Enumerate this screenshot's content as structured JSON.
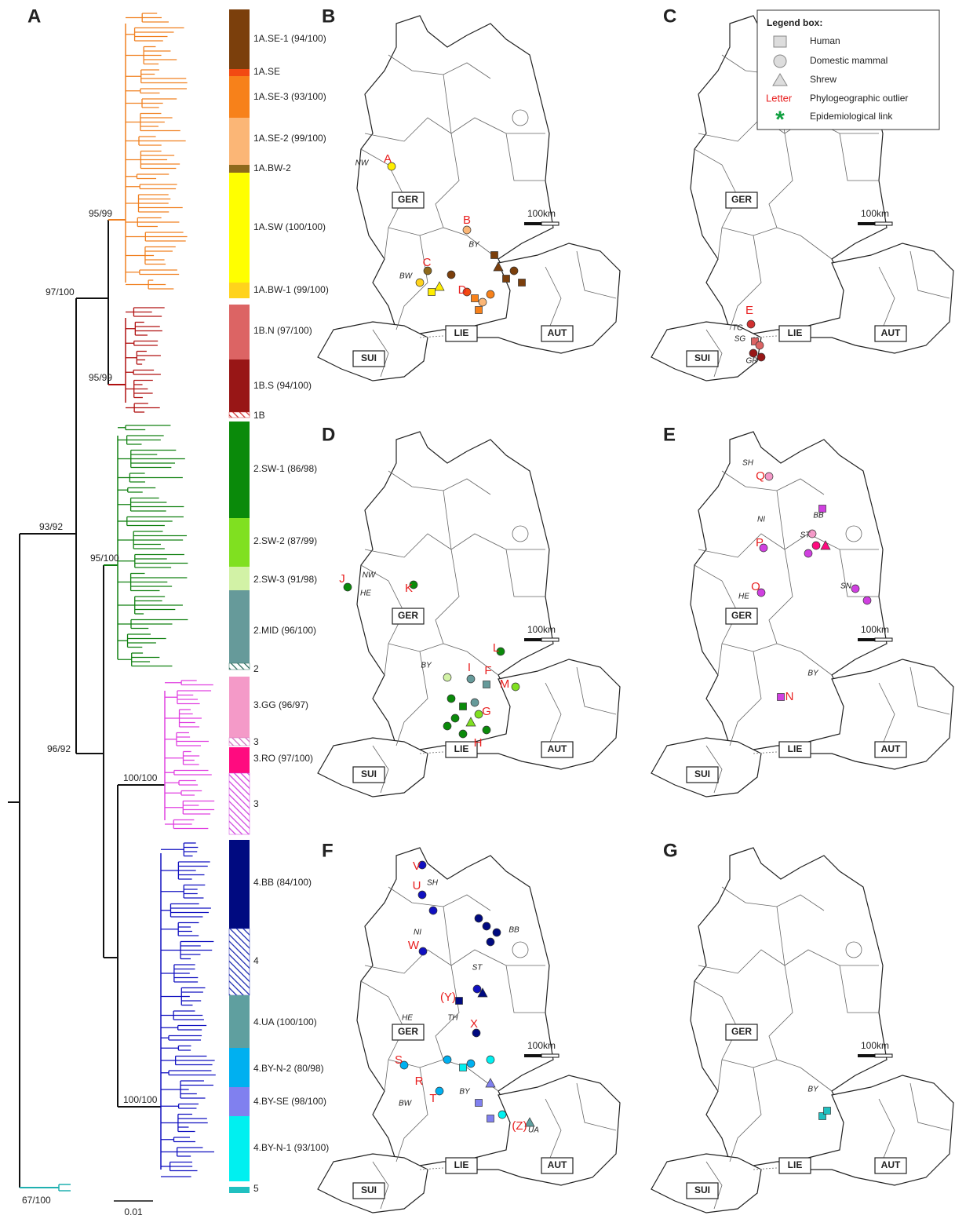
{
  "panel_labels": [
    "A",
    "B",
    "C",
    "D",
    "E",
    "F",
    "G"
  ],
  "tree": {
    "supports": [
      "95/99",
      "97/100",
      "95/99",
      "93/92",
      "95/100",
      "96/92",
      "100/100",
      "100/100",
      "67/100"
    ],
    "scale": "0.01",
    "clades": [
      {
        "label": "1A.SE-1 (94/100)",
        "color": "#7b3f0c",
        "hatched": false
      },
      {
        "label": "1A.SE",
        "color": "#f24a12",
        "hatched": false
      },
      {
        "label": "1A.SE-3 (93/100)",
        "color": "#f7811a",
        "hatched": false
      },
      {
        "label": "1A.SE-2 (99/100)",
        "color": "#fbb676",
        "hatched": false
      },
      {
        "label": "1A.BW-2",
        "color": "#8e6a1c",
        "hatched": false
      },
      {
        "label": "1A.SW (100/100)",
        "color": "#ffff00",
        "hatched": false
      },
      {
        "label": "1A.BW-1 (99/100)",
        "color": "#ffd31c",
        "hatched": false
      },
      {
        "label": "1B.N (97/100)",
        "color": "#dc6464",
        "hatched": false
      },
      {
        "label": "1B.S (94/100)",
        "color": "#981616",
        "hatched": false
      },
      {
        "label": "1B",
        "color": "#d03030",
        "hatched": true
      },
      {
        "label": "2.SW-1 (86/98)",
        "color": "#0a8a0a",
        "hatched": false
      },
      {
        "label": "2.SW-2 (87/99)",
        "color": "#80e020",
        "hatched": false
      },
      {
        "label": "2.SW-3 (91/98)",
        "color": "#d2f2a6",
        "hatched": false
      },
      {
        "label": "2.MID (96/100)",
        "color": "#669a9a",
        "hatched": false
      },
      {
        "label": "2",
        "color": "#2a6a5a",
        "hatched": true
      },
      {
        "label": "3.GG (96/97)",
        "color": "#f49ac8",
        "hatched": false
      },
      {
        "label": "3",
        "color": "#d070c0",
        "hatched": true
      },
      {
        "label": "3.RO (97/100)",
        "color": "#ff0b7f",
        "hatched": false
      },
      {
        "label": "3",
        "color": "#d040e0",
        "hatched": true
      },
      {
        "label": "4.BB (84/100)",
        "color": "#000a80",
        "hatched": false
      },
      {
        "label": "4",
        "color": "#1a28b0",
        "hatched": true
      },
      {
        "label": "4.UA (100/100)",
        "color": "#5f9f9f",
        "hatched": false
      },
      {
        "label": "4.BY-N-2 (80/98)",
        "color": "#00b0f0",
        "hatched": false
      },
      {
        "label": "4.BY-SE (98/100)",
        "color": "#8080ef",
        "hatched": false
      },
      {
        "label": "4.BY-N-1 (93/100)",
        "color": "#00f0f0",
        "hatched": false
      },
      {
        "label": "5",
        "color": "#20c0c0",
        "hatched": false
      }
    ]
  },
  "legend": {
    "title": "Legend box:",
    "items": [
      {
        "symbol": "",
        "label": "Human"
      },
      {
        "symbol": "",
        "label": "Domestic mammal"
      },
      {
        "symbol": "",
        "label": "Shrew"
      },
      {
        "symbol": "Letter",
        "label": "Phylogeographic outlier"
      },
      {
        "symbol": "*",
        "label": "Epidemiological link"
      }
    ]
  },
  "maps": [
    {
      "countries": [
        "GER",
        "LIE",
        "SUI",
        "AUT"
      ],
      "scale": "100km",
      "states": [
        "NW",
        "BY",
        "BW"
      ],
      "outliers": [
        "A",
        "B",
        "C",
        "D"
      ]
    },
    {
      "countries": [
        "GER",
        "LIE",
        "SUI",
        "AUT"
      ],
      "scale": "100km",
      "states": [
        "TG",
        "SG",
        "GR"
      ],
      "outliers": [
        "E"
      ]
    },
    {
      "countries": [
        "GER",
        "LIE",
        "SUI",
        "AUT"
      ],
      "scale": "100km",
      "states": [
        "NW",
        "HE",
        "BY"
      ],
      "outliers": [
        "J",
        "K",
        "L",
        "I",
        "F",
        "M",
        "G",
        "H"
      ]
    },
    {
      "countries": [
        "GER",
        "LIE",
        "SUI",
        "AUT"
      ],
      "scale": "100km",
      "states": [
        "SH",
        "NI",
        "BB",
        "ST",
        "HE",
        "SN",
        "BY"
      ],
      "outliers": [
        "Q",
        "P",
        "O",
        "N"
      ]
    },
    {
      "countries": [
        "GER",
        "LIE",
        "SUI",
        "AUT"
      ],
      "scale": "100km",
      "states": [
        "SH",
        "NI",
        "BB",
        "ST",
        "HE",
        "TH",
        "BY",
        "BW",
        "UA"
      ],
      "outliers": [
        "V",
        "U",
        "W",
        "(Y)",
        "X",
        "S",
        "R",
        "T",
        "(Z)"
      ]
    },
    {
      "countries": [
        "GER",
        "LIE",
        "SUI",
        "AUT"
      ],
      "scale": "100km",
      "states": [
        "BY"
      ],
      "outliers": []
    }
  ]
}
